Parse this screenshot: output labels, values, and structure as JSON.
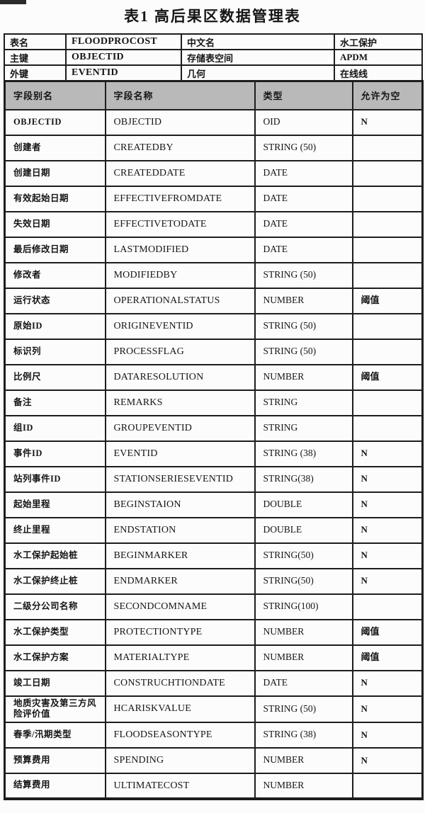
{
  "page": {
    "title": "表1 高后果区数据管理表"
  },
  "colors": {
    "header_bg": "#b9b9b9",
    "border": "#1d1d1d",
    "page_bg": "#fcfcfc"
  },
  "info_table": {
    "rows": [
      [
        "表名",
        "FLOODPROCOST",
        "中文名",
        "水工保护"
      ],
      [
        "主键",
        "OBJECTID",
        "存储表空间",
        "APDM"
      ],
      [
        "外键",
        "EVENTID",
        "几何",
        "在线线"
      ]
    ]
  },
  "fields_table": {
    "headers": [
      "字段别名",
      "字段名称",
      "类型",
      "允许为空"
    ],
    "rows": [
      [
        "OBJECTID",
        "OBJECTID",
        "OID",
        "N"
      ],
      [
        "创建者",
        "CREATEDBY",
        "STRING (50)",
        ""
      ],
      [
        "创建日期",
        "CREATEDDATE",
        "DATE",
        ""
      ],
      [
        "有效起始日期",
        "EFFECTIVEFROMDATE",
        "DATE",
        ""
      ],
      [
        "失效日期",
        "EFFECTIVETODATE",
        "DATE",
        ""
      ],
      [
        "最后修改日期",
        "LASTMODIFIED",
        "DATE",
        ""
      ],
      [
        "修改者",
        "MODIFIEDBY",
        "STRING (50)",
        ""
      ],
      [
        "运行状态",
        "OPERATIONALSTATUS",
        "NUMBER",
        "阈值"
      ],
      [
        "原始ID",
        "ORIGINEVENTID",
        "STRING (50)",
        ""
      ],
      [
        "标识列",
        "PROCESSFLAG",
        "STRING (50)",
        ""
      ],
      [
        "比例尺",
        "DATARESOLUTION",
        "NUMBER",
        "阈值"
      ],
      [
        "备注",
        "REMARKS",
        "STRING",
        ""
      ],
      [
        "组ID",
        "GROUPEVENTID",
        "STRING",
        ""
      ],
      [
        "事件ID",
        "EVENTID",
        "STRING (38)",
        "N"
      ],
      [
        "站列事件ID",
        "STATIONSERIESEVENTID",
        "STRING(38)",
        "N"
      ],
      [
        "起始里程",
        "BEGINSTAION",
        "DOUBLE",
        "N"
      ],
      [
        "终止里程",
        "ENDSTATION",
        "DOUBLE",
        "N"
      ],
      [
        "水工保护起始桩",
        "BEGINMARKER",
        "STRING(50)",
        "N"
      ],
      [
        "水工保护终止桩",
        "ENDMARKER",
        "STRING(50)",
        "N"
      ],
      [
        "二级分公司名称",
        "SECONDCOMNAME",
        "STRING(100)",
        ""
      ],
      [
        "水工保护类型",
        "PROTECTIONTYPE",
        "NUMBER",
        "阈值"
      ],
      [
        "水工保护方案",
        "MATERIALTYPE",
        "NUMBER",
        "阈值"
      ],
      [
        "竣工日期",
        "CONSTRUCHTIONDATE",
        "DATE",
        "N"
      ],
      [
        "地质灾害及第三方风险评价值",
        "HCARISKVALUE",
        "STRING (50)",
        "N"
      ],
      [
        "春季/汛期类型",
        "FLOODSEASONTYPE",
        "STRING (38)",
        "N"
      ],
      [
        "预算费用",
        "SPENDING",
        "NUMBER",
        "N"
      ],
      [
        "结算费用",
        "ULTIMATECOST",
        "NUMBER",
        ""
      ]
    ]
  }
}
